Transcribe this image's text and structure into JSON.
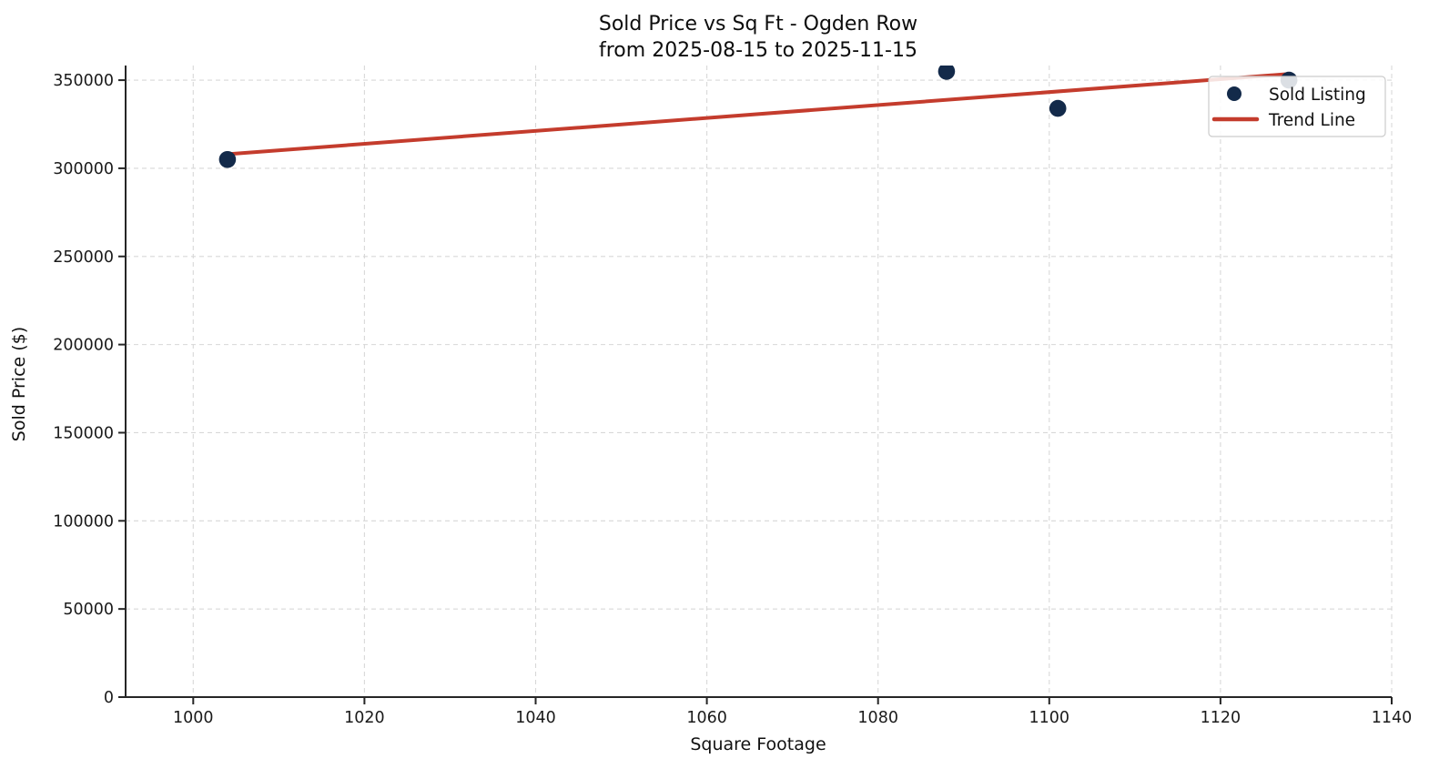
{
  "chart_data": {
    "type": "scatter",
    "title": "Sold Price vs Sq Ft - Ogden Row",
    "subtitle": "from 2025-08-15 to 2025-11-15",
    "xlabel": "Square Footage",
    "ylabel": "Sold Price ($)",
    "xlim": [
      992.1,
      1140
    ],
    "ylim": [
      0,
      358300
    ],
    "x_ticks": [
      1000,
      1020,
      1040,
      1060,
      1080,
      1100,
      1120,
      1140
    ],
    "y_ticks": [
      0,
      50000,
      100000,
      150000,
      200000,
      250000,
      300000,
      350000
    ],
    "grid": true,
    "legend_position": "upper right",
    "series": [
      {
        "name": "Sold Listing",
        "type": "scatter",
        "points": [
          {
            "sqft": 1004,
            "price": 305000
          },
          {
            "sqft": 1088,
            "price": 355000
          },
          {
            "sqft": 1101,
            "price": 334000
          },
          {
            "sqft": 1128,
            "price": 350000
          }
        ]
      },
      {
        "name": "Trend Line",
        "type": "line",
        "points": [
          {
            "sqft": 1004,
            "price": 308000
          },
          {
            "sqft": 1128,
            "price": 353500
          }
        ]
      }
    ],
    "colors": {
      "point": "#132a4a",
      "trend": "#c43c2d",
      "grid": "#d8d8d8",
      "spine": "#262626",
      "text": "#111111",
      "legend_bg": "#ffffff",
      "legend_border": "#cccccc"
    }
  }
}
